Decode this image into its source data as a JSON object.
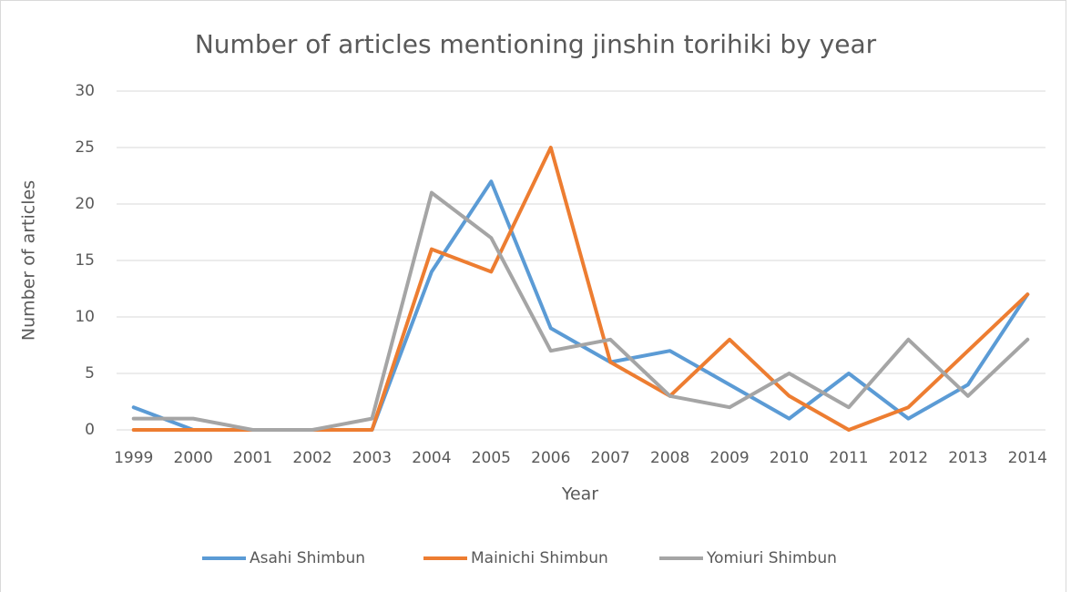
{
  "chart_data": {
    "type": "line",
    "title": "Number of articles mentioning jinshin torihiki by year",
    "x_label": "Year",
    "y_label": "Number of articles",
    "categories": [
      "1999",
      "2000",
      "2001",
      "2002",
      "2003",
      "2004",
      "2005",
      "2006",
      "2007",
      "2008",
      "2009",
      "2010",
      "2011",
      "2012",
      "2013",
      "2014"
    ],
    "series": [
      {
        "name": "Asahi Shimbun",
        "color": "#5b9bd5",
        "values": [
          2,
          0,
          0,
          0,
          0,
          14,
          22,
          9,
          6,
          7,
          4,
          1,
          5,
          1,
          4,
          12
        ]
      },
      {
        "name": "Mainichi Shimbun",
        "color": "#ed7d31",
        "values": [
          0,
          0,
          0,
          0,
          0,
          16,
          14,
          25,
          6,
          3,
          8,
          3,
          0,
          2,
          7,
          12
        ]
      },
      {
        "name": "Yomiuri Shimbun",
        "color": "#a5a5a5",
        "values": [
          1,
          1,
          0,
          0,
          1,
          21,
          17,
          7,
          8,
          3,
          2,
          5,
          2,
          8,
          3,
          8
        ]
      }
    ],
    "ylim": [
      0,
      30
    ],
    "yticks": [
      0,
      5,
      10,
      15,
      20,
      25,
      30
    ],
    "grid": true,
    "legend": "bottom"
  }
}
